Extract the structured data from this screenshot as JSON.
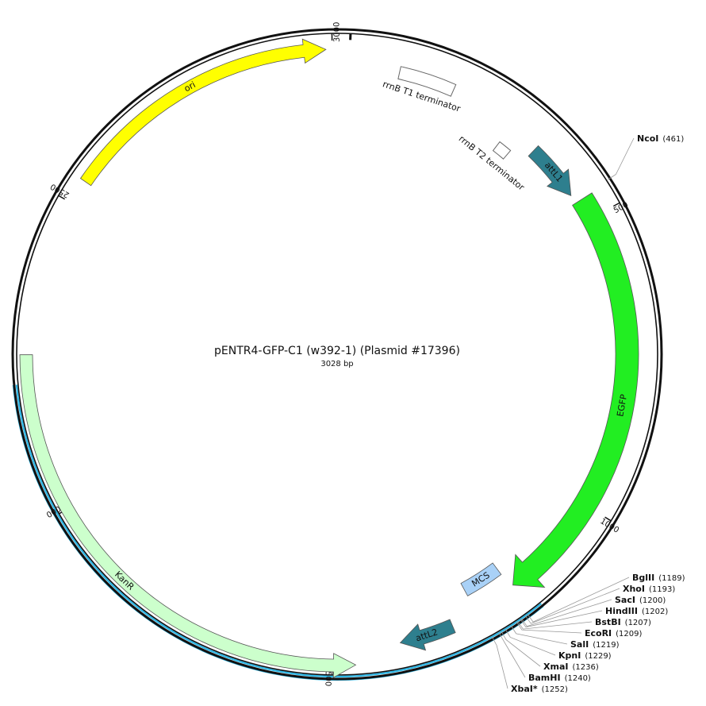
{
  "plasmid": {
    "name": "pENTR4-GFP-C1 (w392-1) (Plasmid #17396)",
    "size_label": "3028 bp",
    "length": 3028
  },
  "ticks": [
    {
      "bp": 500,
      "label": "500"
    },
    {
      "bp": 1000,
      "label": "1000"
    },
    {
      "bp": 1500,
      "label": "1500"
    },
    {
      "bp": 2000,
      "label": "2000"
    },
    {
      "bp": 2500,
      "label": "2500"
    },
    {
      "bp": 3000,
      "label": "3000"
    }
  ],
  "features": [
    {
      "key": "rrnb-t1",
      "name": "rrnB T1 terminator",
      "type": "terminator",
      "start": 85,
      "end": 180,
      "color": "#ffffff"
    },
    {
      "key": "rrnb-t2",
      "name": "rrnB T2 terminator",
      "type": "terminator",
      "start": 295,
      "end": 320,
      "color": "#ffffff"
    },
    {
      "key": "attl1",
      "name": "attL1",
      "type": "att",
      "start": 350,
      "end": 450,
      "color": "#2e7f8e"
    },
    {
      "key": "egfp",
      "name": "EGFP",
      "type": "cds",
      "start": 465,
      "end": 1180,
      "color": "#22ee22"
    },
    {
      "key": "mcs",
      "name": "MCS",
      "type": "mcs",
      "start": 1185,
      "end": 1255,
      "color": "#a9d1f7"
    },
    {
      "key": "attl2",
      "name": "attL2",
      "type": "att",
      "start": 1300,
      "end": 1390,
      "color": "#2e7f8e"
    },
    {
      "key": "kanr",
      "name": "KanR",
      "type": "cds",
      "start": 1465,
      "end": 2250,
      "color": "#ccffcc"
    },
    {
      "key": "ori",
      "name": "ori",
      "type": "origin",
      "start": 2540,
      "end": 2990,
      "color": "#ffff00"
    }
  ],
  "sites": [
    {
      "key": "ncoi",
      "name": "NcoI",
      "pos": "(461)",
      "bp": 461,
      "color": "#111111"
    },
    {
      "key": "bglii",
      "name": "BglII",
      "pos": "(1189)",
      "bp": 1189,
      "color": "#111111"
    },
    {
      "key": "xhoi",
      "name": "XhoI",
      "pos": "(1193)",
      "bp": 1193,
      "color": "#111111"
    },
    {
      "key": "saci",
      "name": "SacI",
      "pos": "(1200)",
      "bp": 1200,
      "color": "#111111"
    },
    {
      "key": "hindiii",
      "name": "HindIII",
      "pos": "(1202)",
      "bp": 1202,
      "color": "#111111"
    },
    {
      "key": "bstbi",
      "name": "BstBI",
      "pos": "(1207)",
      "bp": 1207,
      "color": "#111111"
    },
    {
      "key": "ecori",
      "name": "EcoRI",
      "pos": "(1209)",
      "bp": 1209,
      "color": "#111111"
    },
    {
      "key": "sali",
      "name": "SalI",
      "pos": "(1219)",
      "bp": 1219,
      "color": "#111111"
    },
    {
      "key": "kpni",
      "name": "KpnI",
      "pos": "(1229)",
      "bp": 1229,
      "color": "#111111"
    },
    {
      "key": "xmai",
      "name": "XmaI",
      "pos": "(1236)",
      "bp": 1236,
      "color": "#111111"
    },
    {
      "key": "bamhi",
      "name": "BamHI",
      "pos": "(1240)",
      "bp": 1240,
      "color": "#111111"
    },
    {
      "key": "xbai",
      "name": "XbaI*",
      "pos": "(1252)",
      "bp": 1252,
      "color": "#888888"
    }
  ],
  "colors": {
    "backbone": "#111111",
    "insert_highlight": "#29b6e6"
  }
}
